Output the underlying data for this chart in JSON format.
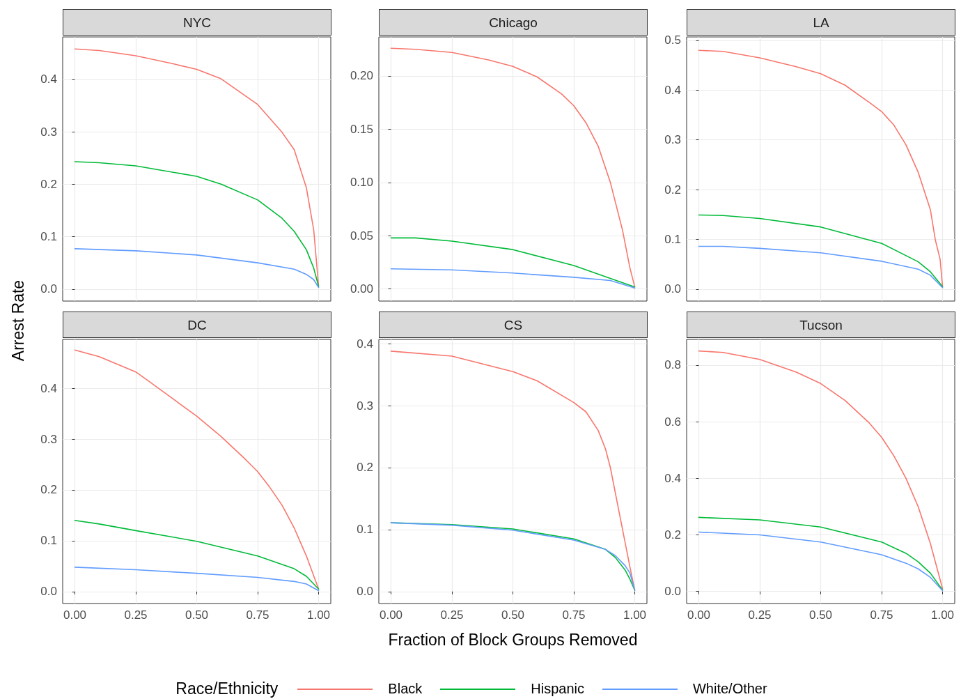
{
  "chart_data": [
    {
      "type": "line",
      "title": "NYC",
      "ylabel": "Arrest Rate",
      "legend_title": "Race/Ethnicity",
      "legend": "bottom",
      "grid": true,
      "marker": "none",
      "line_style": "solid",
      "tick_labels": "y",
      "xlim": [
        -0.05,
        1.05
      ],
      "ylim": [
        -0.0229,
        0.4809
      ],
      "xticks": [
        {
          "value": 0,
          "label": null
        },
        {
          "value": 0.25,
          "label": null
        },
        {
          "value": 0.5,
          "label": null
        },
        {
          "value": 0.75,
          "label": null
        },
        {
          "value": 1,
          "label": null
        }
      ],
      "yticks": [
        {
          "value": 0,
          "label": "0.0"
        },
        {
          "value": 0.1,
          "label": "0.1"
        },
        {
          "value": 0.2,
          "label": "0.2"
        },
        {
          "value": 0.3,
          "label": "0.3"
        },
        {
          "value": 0.4,
          "label": "0.4"
        }
      ],
      "series": [
        {
          "name": "Black",
          "color": "#f8766d",
          "x": [
            0,
            0.1,
            0.25,
            0.4,
            0.5,
            0.6,
            0.75,
            0.85,
            0.9,
            0.95,
            0.98,
            1
          ],
          "values": [
            0.458,
            0.455,
            0.445,
            0.43,
            0.419,
            0.401,
            0.352,
            0.299,
            0.266,
            0.193,
            0.113,
            0.005
          ]
        },
        {
          "name": "Hispanic",
          "color": "#00ba38",
          "x": [
            0,
            0.1,
            0.25,
            0.5,
            0.6,
            0.75,
            0.85,
            0.9,
            0.95,
            0.98,
            1
          ],
          "values": [
            0.243,
            0.241,
            0.235,
            0.215,
            0.2,
            0.17,
            0.135,
            0.11,
            0.075,
            0.04,
            0.005
          ]
        },
        {
          "name": "White/Other",
          "color": "#619cff",
          "x": [
            0,
            0.25,
            0.5,
            0.75,
            0.9,
            0.95,
            0.98,
            1
          ],
          "values": [
            0.077,
            0.073,
            0.065,
            0.05,
            0.038,
            0.028,
            0.018,
            0.003
          ]
        }
      ]
    },
    {
      "type": "line",
      "title": "Chicago",
      "grid": true,
      "marker": "none",
      "line_style": "solid",
      "tick_labels": "y",
      "xlim": [
        -0.05,
        1.05
      ],
      "ylim": [
        -0.0113,
        0.2366
      ],
      "xticks": [
        {
          "value": 0,
          "label": null
        },
        {
          "value": 0.25,
          "label": null
        },
        {
          "value": 0.5,
          "label": null
        },
        {
          "value": 0.75,
          "label": null
        },
        {
          "value": 1,
          "label": null
        }
      ],
      "yticks": [
        {
          "value": 0,
          "label": "0.00"
        },
        {
          "value": 0.05,
          "label": "0.05"
        },
        {
          "value": 0.1,
          "label": "0.10"
        },
        {
          "value": 0.15,
          "label": "0.15"
        },
        {
          "value": 0.2,
          "label": "0.20"
        }
      ],
      "series": [
        {
          "color": "#f8766d",
          "x": [
            0,
            0.1,
            0.25,
            0.4,
            0.5,
            0.6,
            0.7,
            0.75,
            0.8,
            0.85,
            0.9,
            0.95,
            0.98,
            1
          ],
          "values": [
            0.226,
            0.225,
            0.222,
            0.215,
            0.209,
            0.199,
            0.183,
            0.172,
            0.156,
            0.134,
            0.1,
            0.055,
            0.02,
            0.002
          ]
        },
        {
          "color": "#00ba38",
          "x": [
            0,
            0.1,
            0.25,
            0.5,
            0.75,
            0.9,
            1
          ],
          "values": [
            0.048,
            0.048,
            0.045,
            0.037,
            0.022,
            0.01,
            0.002
          ]
        },
        {
          "color": "#619cff",
          "x": [
            0,
            0.25,
            0.5,
            0.75,
            0.9,
            1
          ],
          "values": [
            0.019,
            0.018,
            0.015,
            0.011,
            0.008,
            0.001
          ]
        }
      ]
    },
    {
      "type": "line",
      "title": "LA",
      "grid": true,
      "marker": "none",
      "line_style": "solid",
      "tick_labels": "y",
      "xlim": [
        -0.05,
        1.05
      ],
      "ylim": [
        -0.024,
        0.507
      ],
      "xticks": [
        {
          "value": 0,
          "label": null
        },
        {
          "value": 0.25,
          "label": null
        },
        {
          "value": 0.5,
          "label": null
        },
        {
          "value": 0.75,
          "label": null
        },
        {
          "value": 1,
          "label": null
        }
      ],
      "yticks": [
        {
          "value": 0,
          "label": "0.0"
        },
        {
          "value": 0.1,
          "label": "0.1"
        },
        {
          "value": 0.2,
          "label": "0.2"
        },
        {
          "value": 0.3,
          "label": "0.3"
        },
        {
          "value": 0.4,
          "label": "0.4"
        },
        {
          "value": 0.5,
          "label": "0.5"
        }
      ],
      "series": [
        {
          "color": "#f8766d",
          "x": [
            0,
            0.1,
            0.25,
            0.4,
            0.5,
            0.6,
            0.7,
            0.75,
            0.8,
            0.85,
            0.9,
            0.95,
            0.97,
            0.99,
            1
          ],
          "values": [
            0.48,
            0.478,
            0.465,
            0.447,
            0.433,
            0.41,
            0.375,
            0.357,
            0.33,
            0.29,
            0.235,
            0.16,
            0.1,
            0.06,
            0.005
          ]
        },
        {
          "color": "#00ba38",
          "x": [
            0,
            0.1,
            0.25,
            0.5,
            0.75,
            0.9,
            0.95,
            1
          ],
          "values": [
            0.149,
            0.148,
            0.142,
            0.125,
            0.092,
            0.055,
            0.035,
            0.005
          ]
        },
        {
          "color": "#619cff",
          "x": [
            0,
            0.1,
            0.25,
            0.5,
            0.75,
            0.9,
            0.95,
            1
          ],
          "values": [
            0.086,
            0.086,
            0.082,
            0.073,
            0.056,
            0.04,
            0.028,
            0.003
          ]
        }
      ]
    },
    {
      "type": "line",
      "title": "DC",
      "grid": true,
      "marker": "none",
      "line_style": "solid",
      "xlim": [
        -0.05,
        1.05
      ],
      "ylim": [
        -0.0234,
        0.496
      ],
      "xticks": [
        {
          "value": 0,
          "label": "0.00"
        },
        {
          "value": 0.25,
          "label": "0.25"
        },
        {
          "value": 0.5,
          "label": "0.50"
        },
        {
          "value": 0.75,
          "label": "0.75"
        },
        {
          "value": 1,
          "label": "1.00"
        }
      ],
      "yticks": [
        {
          "value": 0,
          "label": "0.0"
        },
        {
          "value": 0.1,
          "label": "0.1"
        },
        {
          "value": 0.2,
          "label": "0.2"
        },
        {
          "value": 0.3,
          "label": "0.3"
        },
        {
          "value": 0.4,
          "label": "0.4"
        }
      ],
      "series": [
        {
          "color": "#f8766d",
          "x": [
            0,
            0.1,
            0.25,
            0.3,
            0.4,
            0.5,
            0.6,
            0.7,
            0.75,
            0.8,
            0.85,
            0.9,
            0.95,
            1
          ],
          "values": [
            0.475,
            0.462,
            0.432,
            0.415,
            0.38,
            0.345,
            0.305,
            0.26,
            0.236,
            0.205,
            0.17,
            0.125,
            0.07,
            0.005
          ]
        },
        {
          "color": "#00ba38",
          "x": [
            0,
            0.1,
            0.25,
            0.5,
            0.75,
            0.9,
            0.95,
            1
          ],
          "values": [
            0.14,
            0.133,
            0.12,
            0.099,
            0.07,
            0.045,
            0.03,
            0.005
          ]
        },
        {
          "color": "#619cff",
          "x": [
            0,
            0.25,
            0.5,
            0.75,
            0.9,
            0.95,
            1
          ],
          "values": [
            0.048,
            0.043,
            0.036,
            0.028,
            0.02,
            0.015,
            0.002
          ]
        }
      ]
    },
    {
      "type": "line",
      "title": "CS",
      "xlabel": "Fraction of Block Groups Removed",
      "grid": true,
      "marker": "none",
      "line_style": "solid",
      "xlim": [
        -0.05,
        1.05
      ],
      "ylim": [
        -0.0194,
        0.407
      ],
      "xticks": [
        {
          "value": 0,
          "label": "0.00"
        },
        {
          "value": 0.25,
          "label": "0.25"
        },
        {
          "value": 0.5,
          "label": "0.50"
        },
        {
          "value": 0.75,
          "label": "0.75"
        },
        {
          "value": 1,
          "label": "1.00"
        }
      ],
      "yticks": [
        {
          "value": 0,
          "label": "0.0"
        },
        {
          "value": 0.1,
          "label": "0.1"
        },
        {
          "value": 0.2,
          "label": "0.2"
        },
        {
          "value": 0.3,
          "label": "0.3"
        },
        {
          "value": 0.4,
          "label": "0.4"
        }
      ],
      "series": [
        {
          "color": "#f8766d",
          "x": [
            0,
            0.25,
            0.5,
            0.6,
            0.75,
            0.8,
            0.85,
            0.88,
            0.9,
            0.93,
            0.96,
            0.98,
            1
          ],
          "values": [
            0.388,
            0.38,
            0.355,
            0.34,
            0.305,
            0.29,
            0.26,
            0.23,
            0.2,
            0.14,
            0.08,
            0.04,
            0.002
          ]
        },
        {
          "color": "#00ba38",
          "x": [
            0,
            0.25,
            0.5,
            0.75,
            0.88,
            0.92,
            0.96,
            0.98,
            1
          ],
          "values": [
            0.111,
            0.108,
            0.101,
            0.085,
            0.068,
            0.055,
            0.035,
            0.02,
            0.002
          ]
        },
        {
          "color": "#619cff",
          "x": [
            0,
            0.25,
            0.5,
            0.75,
            0.88,
            0.92,
            0.96,
            0.98,
            1
          ],
          "values": [
            0.111,
            0.107,
            0.099,
            0.083,
            0.068,
            0.058,
            0.042,
            0.03,
            0.002
          ]
        }
      ]
    },
    {
      "type": "line",
      "title": "Tucson",
      "grid": true,
      "marker": "none",
      "line_style": "solid",
      "xlim": [
        -0.05,
        1.05
      ],
      "ylim": [
        -0.0425,
        0.891
      ],
      "xticks": [
        {
          "value": 0,
          "label": "0.00"
        },
        {
          "value": 0.25,
          "label": "0.25"
        },
        {
          "value": 0.5,
          "label": "0.50"
        },
        {
          "value": 0.75,
          "label": "0.75"
        },
        {
          "value": 1,
          "label": "1.00"
        }
      ],
      "yticks": [
        {
          "value": 0,
          "label": "0.0"
        },
        {
          "value": 0.2,
          "label": "0.2"
        },
        {
          "value": 0.4,
          "label": "0.4"
        },
        {
          "value": 0.6,
          "label": "0.6"
        },
        {
          "value": 0.8,
          "label": "0.8"
        }
      ],
      "series": [
        {
          "color": "#f8766d",
          "x": [
            0,
            0.1,
            0.25,
            0.4,
            0.5,
            0.6,
            0.7,
            0.75,
            0.8,
            0.85,
            0.9,
            0.95,
            1
          ],
          "values": [
            0.85,
            0.845,
            0.82,
            0.775,
            0.735,
            0.675,
            0.595,
            0.545,
            0.48,
            0.4,
            0.3,
            0.17,
            0.01
          ]
        },
        {
          "color": "#00ba38",
          "x": [
            0,
            0.25,
            0.5,
            0.75,
            0.85,
            0.9,
            0.95,
            1
          ],
          "values": [
            0.262,
            0.253,
            0.228,
            0.175,
            0.135,
            0.105,
            0.065,
            0.005
          ]
        },
        {
          "color": "#619cff",
          "x": [
            0,
            0.25,
            0.5,
            0.75,
            0.85,
            0.9,
            0.95,
            1
          ],
          "values": [
            0.21,
            0.2,
            0.175,
            0.13,
            0.1,
            0.08,
            0.05,
            0.003
          ]
        }
      ]
    }
  ]
}
